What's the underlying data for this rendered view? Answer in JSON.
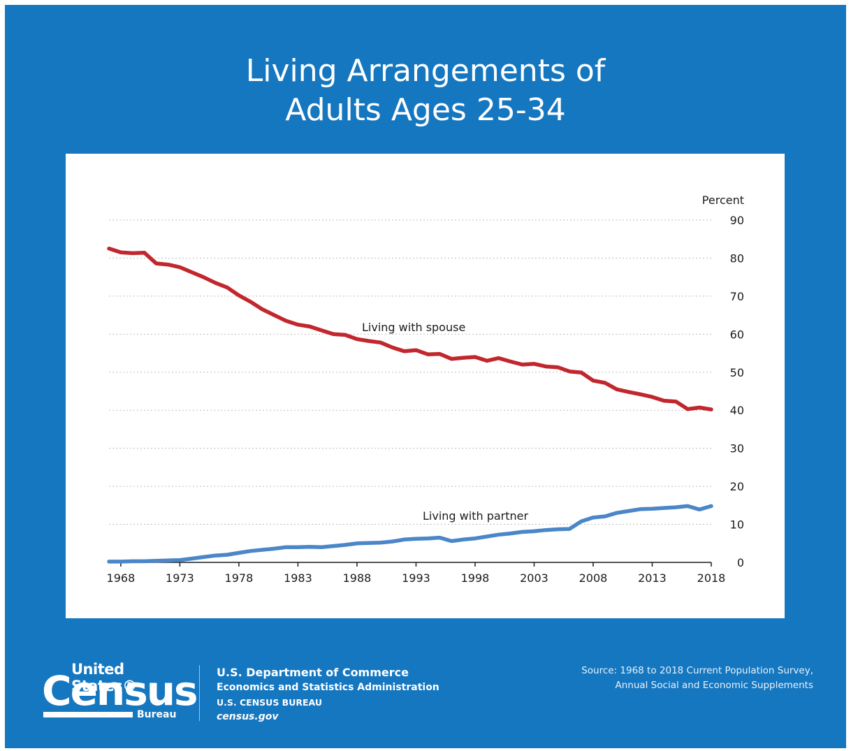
{
  "title_line1": "Living Arrangements of",
  "title_line2": "Adults Ages 25-34",
  "colors": {
    "background": "#1577c0",
    "spouse": "#c1272d",
    "partner": "#4a86c8"
  },
  "chart_data": {
    "type": "line",
    "ylabel": "Percent",
    "ylim": [
      0,
      90
    ],
    "yticks": [
      "0",
      "10",
      "20",
      "30",
      "40",
      "50",
      "60",
      "70",
      "80",
      "90"
    ],
    "xlim": [
      1967,
      2018
    ],
    "xticks": [
      "1968",
      "1973",
      "1978",
      "1983",
      "1988",
      "1993",
      "1998",
      "2003",
      "2008",
      "2013",
      "2018"
    ],
    "grid": true,
    "y_axis_side": "right",
    "x": [
      1967,
      1968,
      1969,
      1970,
      1971,
      1972,
      1973,
      1974,
      1975,
      1976,
      1977,
      1978,
      1979,
      1980,
      1981,
      1982,
      1983,
      1984,
      1985,
      1986,
      1987,
      1988,
      1989,
      1990,
      1991,
      1992,
      1993,
      1994,
      1995,
      1996,
      1997,
      1998,
      1999,
      2000,
      2001,
      2002,
      2003,
      2004,
      2005,
      2006,
      2007,
      2008,
      2009,
      2010,
      2011,
      2012,
      2013,
      2014,
      2015,
      2016,
      2017,
      2018
    ],
    "series": [
      {
        "name": "Living with spouse",
        "values": [
          82.5,
          81.5,
          81.3,
          81.4,
          78.6,
          78.3,
          77.6,
          76.3,
          75.0,
          73.5,
          72.3,
          70.2,
          68.5,
          66.5,
          65.0,
          63.5,
          62.5,
          62.0,
          61.0,
          60.0,
          59.8,
          58.7,
          58.2,
          57.8,
          56.5,
          55.5,
          55.8,
          54.7,
          54.8,
          53.5,
          53.8,
          54.0,
          53.0,
          53.7,
          52.8,
          52.0,
          52.2,
          51.5,
          51.3,
          50.2,
          49.9,
          47.8,
          47.2,
          45.5,
          44.8,
          44.2,
          43.5,
          42.5,
          42.3,
          40.3,
          40.7,
          40.2
        ]
      },
      {
        "name": "Living with partner",
        "values": [
          0.2,
          0.2,
          0.3,
          0.3,
          0.4,
          0.5,
          0.6,
          1.0,
          1.4,
          1.8,
          2.0,
          2.5,
          3.0,
          3.3,
          3.6,
          4.0,
          4.0,
          4.1,
          4.0,
          4.3,
          4.6,
          5.0,
          5.1,
          5.2,
          5.5,
          6.0,
          6.2,
          6.3,
          6.5,
          5.6,
          6.0,
          6.3,
          6.8,
          7.3,
          7.6,
          8.0,
          8.2,
          8.5,
          8.7,
          8.8,
          10.8,
          11.8,
          12.1,
          13.0,
          13.5,
          14.0,
          14.1,
          14.3,
          14.5,
          14.8,
          13.9,
          14.8
        ]
      }
    ]
  },
  "footer": {
    "logo_united_states": "United States®",
    "logo_census": "Census",
    "logo_bureau": "Bureau",
    "dept_line1": "U.S. Department of Commerce",
    "dept_line2": "Economics and Statistics Administration",
    "dept_line3": "U.S. CENSUS BUREAU",
    "dept_line4": "census.gov",
    "source_line1": "Source: 1968 to 2018 Current Population Survey,",
    "source_line2": "Annual Social and Economic Supplements"
  }
}
